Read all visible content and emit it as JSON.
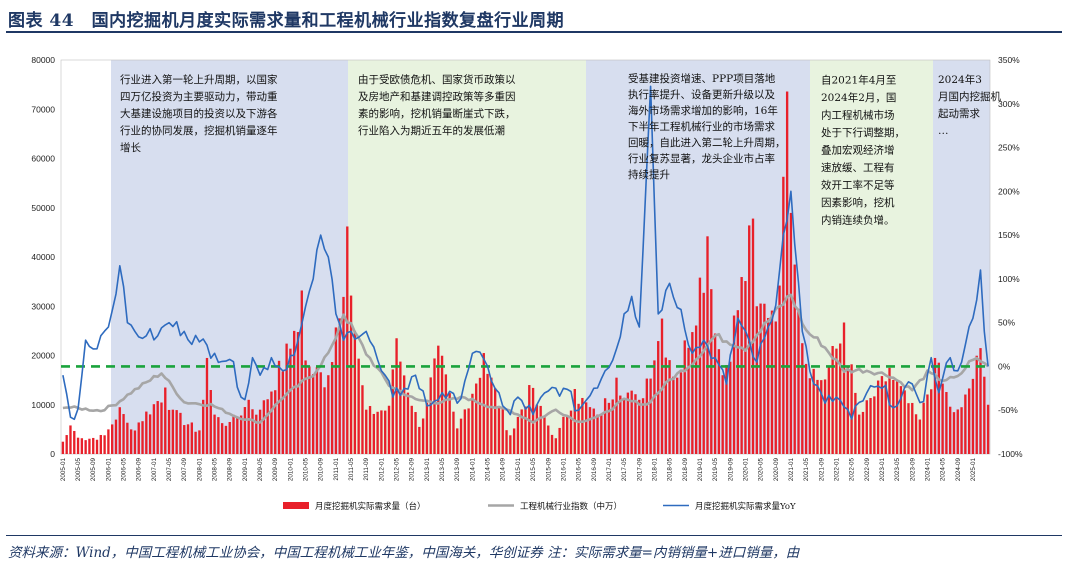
{
  "title": "图表 44　国内挖掘机月度实际需求量和工程机械行业指数复盘行业周期",
  "source_note": "资料来源：Wind，中国工程机械工业协会，中国工程机械工业年鉴，中国海关，华创证券  注：实际需求量=内销销量+进口销量，由",
  "chart_data": {
    "type": "bar+line",
    "x_start": "2005-01",
    "x_end": "2025-05",
    "x_tick_labels": [
      "2005-01",
      "2005-05",
      "2005-09",
      "2006-01",
      "2006-05",
      "2006-09",
      "2007-01",
      "2007-05",
      "2007-09",
      "2008-01",
      "2008-05",
      "2008-09",
      "2009-01",
      "2009-05",
      "2009-09",
      "2010-01",
      "2010-05",
      "2010-09",
      "2011-01",
      "2011-05",
      "2011-09",
      "2012-01",
      "2012-05",
      "2012-09",
      "2013-01",
      "2013-05",
      "2013-09",
      "2014-01",
      "2014-05",
      "2014-09",
      "2015-01",
      "2015-05",
      "2015-09",
      "2016-01",
      "2016-05",
      "2016-09",
      "2017-01",
      "2017-05",
      "2017-09",
      "2018-01",
      "2018-05",
      "2018-09",
      "2019-01",
      "2019-05",
      "2019-09",
      "2020-01",
      "2020-05",
      "2020-09",
      "2021-01",
      "2021-05",
      "2021-09",
      "2022-01",
      "2022-05",
      "2022-09",
      "2023-01",
      "2023-05",
      "2023-09",
      "2024-01",
      "2024-05",
      "2024-09",
      "2025-01"
    ],
    "y_left": {
      "min": 0,
      "max": 80000,
      "step": 10000
    },
    "y_right": {
      "min": -100,
      "max": 350,
      "step": 50,
      "unit": "%"
    },
    "reference_line": {
      "axis": "right",
      "value": 0,
      "style": "dashed",
      "color": "#1aa33c"
    },
    "series": [
      {
        "name": "月度挖掘机实际需求量（台）",
        "type": "bar",
        "axis": "left",
        "color": "#e8202a",
        "anchors": [
          [
            0,
            2500
          ],
          [
            2,
            5800
          ],
          [
            5,
            3200
          ],
          [
            11,
            3800
          ],
          [
            15,
            9500
          ],
          [
            18,
            5000
          ],
          [
            27,
            13500
          ],
          [
            29,
            9000
          ],
          [
            36,
            4800
          ],
          [
            38,
            19500
          ],
          [
            40,
            8000
          ],
          [
            44,
            6500
          ],
          [
            49,
            11000
          ],
          [
            52,
            9000
          ],
          [
            61,
            25000
          ],
          [
            63,
            33200
          ],
          [
            64,
            19000
          ],
          [
            70,
            16000
          ],
          [
            75,
            46200
          ],
          [
            77,
            25000
          ],
          [
            80,
            9000
          ],
          [
            86,
            9800
          ],
          [
            88,
            23500
          ],
          [
            94,
            5500
          ],
          [
            99,
            22000
          ],
          [
            104,
            5200
          ],
          [
            111,
            20500
          ],
          [
            118,
            3800
          ],
          [
            123,
            14000
          ],
          [
            130,
            3200
          ],
          [
            135,
            13200
          ],
          [
            141,
            8000
          ],
          [
            146,
            15500
          ],
          [
            152,
            11000
          ],
          [
            158,
            27500
          ],
          [
            162,
            15500
          ],
          [
            170,
            44200
          ],
          [
            174,
            16000
          ],
          [
            182,
            47800
          ],
          [
            183,
            30000
          ],
          [
            189,
            34200
          ],
          [
            191,
            73600
          ],
          [
            195,
            22500
          ],
          [
            200,
            15000
          ],
          [
            206,
            26700
          ],
          [
            210,
            8000
          ],
          [
            218,
            17500
          ],
          [
            226,
            7000
          ],
          [
            230,
            19500
          ],
          [
            235,
            8500
          ],
          [
            237,
            9500
          ],
          [
            242,
            21500
          ],
          [
            244,
            10000
          ]
        ]
      },
      {
        "name": "工程机械行业指数（中万）",
        "type": "line",
        "axis": "left",
        "color": "#a6a6a6",
        "anchors": [
          [
            0,
            9600
          ],
          [
            10,
            8800
          ],
          [
            14,
            10200
          ],
          [
            18,
            12500
          ],
          [
            26,
            16500
          ],
          [
            32,
            10500
          ],
          [
            39,
            10000
          ],
          [
            46,
            7500
          ],
          [
            52,
            6400
          ],
          [
            58,
            11500
          ],
          [
            66,
            16200
          ],
          [
            71,
            21500
          ],
          [
            74,
            28600
          ],
          [
            80,
            20500
          ],
          [
            86,
            14000
          ],
          [
            93,
            11000
          ],
          [
            99,
            10500
          ],
          [
            106,
            11500
          ],
          [
            112,
            9800
          ],
          [
            118,
            8800
          ],
          [
            124,
            6500
          ],
          [
            130,
            9000
          ],
          [
            136,
            6500
          ],
          [
            142,
            7800
          ],
          [
            148,
            11000
          ],
          [
            154,
            10000
          ],
          [
            160,
            15000
          ],
          [
            166,
            18500
          ],
          [
            172,
            24000
          ],
          [
            180,
            21500
          ],
          [
            186,
            27000
          ],
          [
            192,
            32400
          ],
          [
            196,
            25000
          ],
          [
            200,
            22500
          ],
          [
            206,
            17000
          ],
          [
            212,
            17000
          ],
          [
            218,
            16000
          ],
          [
            224,
            13000
          ],
          [
            228,
            16500
          ],
          [
            232,
            15000
          ],
          [
            236,
            15500
          ],
          [
            240,
            19500
          ],
          [
            244,
            18000
          ]
        ]
      },
      {
        "name": "月度挖掘机实际需求量YoY",
        "type": "line",
        "axis": "right",
        "color": "#2e6bbf",
        "anchors": [
          [
            0,
            -10
          ],
          [
            2,
            -58
          ],
          [
            4,
            -48
          ],
          [
            6,
            30
          ],
          [
            8,
            20
          ],
          [
            10,
            35
          ],
          [
            12,
            45
          ],
          [
            15,
            115
          ],
          [
            17,
            50
          ],
          [
            19,
            40
          ],
          [
            22,
            35
          ],
          [
            25,
            35
          ],
          [
            28,
            50
          ],
          [
            32,
            40
          ],
          [
            36,
            28
          ],
          [
            40,
            15
          ],
          [
            44,
            8
          ],
          [
            48,
            -38
          ],
          [
            50,
            10
          ],
          [
            52,
            -10
          ],
          [
            55,
            10
          ],
          [
            58,
            -5
          ],
          [
            62,
            30
          ],
          [
            66,
            100
          ],
          [
            68,
            150
          ],
          [
            70,
            125
          ],
          [
            72,
            60
          ],
          [
            74,
            30
          ],
          [
            76,
            40
          ],
          [
            80,
            40
          ],
          [
            84,
            -5
          ],
          [
            87,
            -35
          ],
          [
            90,
            -25
          ],
          [
            93,
            -10
          ],
          [
            96,
            -45
          ],
          [
            100,
            -30
          ],
          [
            104,
            -42
          ],
          [
            108,
            15
          ],
          [
            112,
            0
          ],
          [
            116,
            -45
          ],
          [
            118,
            -55
          ],
          [
            120,
            -35
          ],
          [
            124,
            -55
          ],
          [
            128,
            -28
          ],
          [
            132,
            -25
          ],
          [
            136,
            -50
          ],
          [
            140,
            -25
          ],
          [
            143,
            -5
          ],
          [
            146,
            20
          ],
          [
            148,
            60
          ],
          [
            150,
            80
          ],
          [
            152,
            45
          ],
          [
            155,
            320
          ],
          [
            157,
            60
          ],
          [
            160,
            95
          ],
          [
            163,
            65
          ],
          [
            166,
            15
          ],
          [
            169,
            30
          ],
          [
            172,
            10
          ],
          [
            175,
            -20
          ],
          [
            178,
            55
          ],
          [
            181,
            30
          ],
          [
            183,
            5
          ],
          [
            186,
            45
          ],
          [
            188,
            70
          ],
          [
            190,
            150
          ],
          [
            192,
            200
          ],
          [
            195,
            40
          ],
          [
            198,
            -20
          ],
          [
            201,
            -42
          ],
          [
            204,
            -35
          ],
          [
            208,
            -60
          ],
          [
            212,
            -30
          ],
          [
            216,
            -25
          ],
          [
            220,
            -45
          ],
          [
            224,
            -20
          ],
          [
            227,
            -40
          ],
          [
            229,
            10
          ],
          [
            231,
            -30
          ],
          [
            234,
            10
          ],
          [
            236,
            -5
          ],
          [
            238,
            25
          ],
          [
            240,
            55
          ],
          [
            242,
            110
          ],
          [
            243,
            40
          ],
          [
            244,
            0
          ]
        ]
      }
    ],
    "annotations": [
      {
        "lines": [
          "行业进入第一轮上升周期，以国家",
          "四万亿投资为主要驱动力，带动重",
          "大基建设施项目的投资以及下游各",
          "行业的协同发展，挖掘机销量逐年",
          "增长"
        ]
      },
      {
        "lines": [
          "由于受欧债危机、国家货币政策以",
          "及房地产和基建调控政策等多重因",
          "素的影响，挖机销量断崖式下跌，",
          "行业陷入为期近五年的发展低潮"
        ]
      },
      {
        "lines": [
          "受基建投资增速、PPP项目落地",
          "执行率提升、设备更新升级以及",
          "海外市场需求增加的影响，16年",
          "下半年工程机械行业的市场需求",
          "回暖，自此进入第二轮上升周期，",
          "行业复苏显著，龙头企业市占率",
          "持续提升"
        ]
      },
      {
        "lines": [
          "自2021年4月至",
          "2024年2月，国",
          "内工程机械市场",
          "处于下行调整期，",
          "叠加宏观经济增",
          "速放缓、工程有",
          "效开工率不足等",
          "因素影响，挖机",
          "内销连续负增。"
        ]
      },
      {
        "lines": [
          "2024年3",
          "月国内挖掘机",
          "起动需求",
          "…"
        ]
      }
    ]
  }
}
